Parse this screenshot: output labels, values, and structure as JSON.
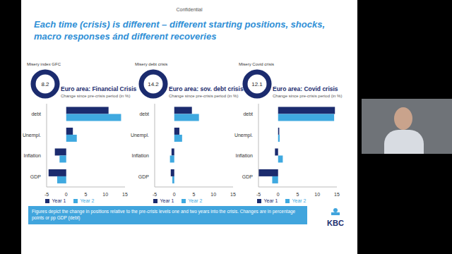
{
  "confidential": "Confidential",
  "title": "Each time (crisis) is different – different starting positions, shocks, macro responses ánd different recoveries",
  "footer": "Figures depict the change in positions relative to the pre-crisis levels one and two years into the crisis. Changes are in percentage points or pp GDP (debt)",
  "logo": "KBC",
  "chart_data": [
    {
      "type": "bar",
      "orientation": "horizontal",
      "title": "Euro area: Financial Crisis",
      "subtitle": "Change since pre-crisis period (in %)",
      "misery_index": {
        "label": "Misery index GFC",
        "value": 8.2
      },
      "categories": [
        "debt",
        "Unempl.",
        "Inflation",
        "GDP"
      ],
      "series": [
        {
          "name": "Year 1",
          "color": "#1b2b6e",
          "values": [
            10.8,
            1.7,
            -2.9,
            -4.5
          ]
        },
        {
          "name": "Year 2",
          "color": "#3fa9e0",
          "values": [
            14,
            2.7,
            -1.7,
            -2.3
          ]
        }
      ],
      "xlim": [
        -5,
        15
      ],
      "xticks": [
        -5,
        0,
        5,
        10,
        15
      ],
      "legend": "bottom"
    },
    {
      "type": "bar",
      "orientation": "horizontal",
      "title": "Euro area: sov. debt crisis",
      "subtitle": "Change since pre-crisis period (in %)",
      "misery_index": {
        "label": "Misery debt crisis",
        "value": 14.2
      },
      "categories": [
        "debt",
        "Unempl.",
        "Inflation",
        "GDP"
      ],
      "series": [
        {
          "name": "Year 1",
          "color": "#1b2b6e",
          "values": [
            4.5,
            1.3,
            -0.7,
            -0.9
          ]
        },
        {
          "name": "Year 2",
          "color": "#3fa9e0",
          "values": [
            6.3,
            2,
            -1.1,
            -0.5
          ]
        }
      ],
      "xlim": [
        -5,
        15
      ],
      "xticks": [
        -5,
        0,
        5,
        10,
        15
      ],
      "legend": "bottom"
    },
    {
      "type": "bar",
      "orientation": "horizontal",
      "title": "Euro area: Covid crisis",
      "subtitle": "Change since pre-crisis period (in %)",
      "misery_index": {
        "label": "Misery Covid crisis",
        "value": 12.1
      },
      "categories": [
        "debt",
        "Unempl.",
        "Inflation",
        "GDP"
      ],
      "series": [
        {
          "name": "Year 1",
          "color": "#1b2b6e",
          "values": [
            14.5,
            0.3,
            -0.8,
            -5
          ]
        },
        {
          "name": "Year 2",
          "color": "#3fa9e0",
          "values": [
            14.3,
            0.4,
            1.2,
            -1.5
          ]
        }
      ],
      "xlim": [
        -5,
        15
      ],
      "xticks": [
        -5,
        0,
        5,
        10,
        15
      ],
      "legend": "bottom"
    }
  ]
}
